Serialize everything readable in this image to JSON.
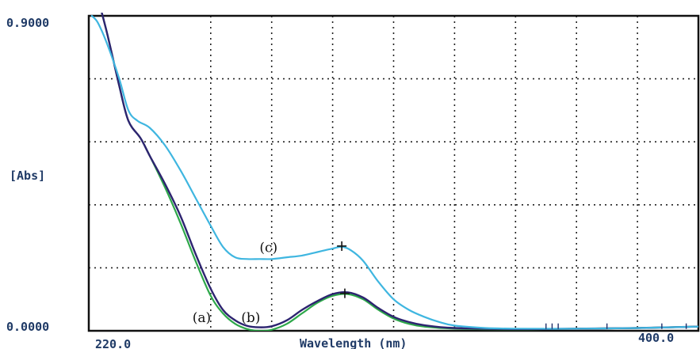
{
  "chart_data": {
    "type": "line",
    "xlabel": "Wavelength (nm)",
    "ylabel": "[Abs]",
    "xlim": [
      200,
      400
    ],
    "ylim": [
      0.0,
      0.9
    ],
    "x_tick_labels": [
      "220.0",
      "400.0"
    ],
    "y_tick_labels": [
      "0.9000",
      "0.0000"
    ],
    "grid": true,
    "series": [
      {
        "name": "(a)",
        "color": "#2ea84a",
        "points": [
          [
            203,
            0.95
          ],
          [
            206,
            0.85
          ],
          [
            210,
            0.7
          ],
          [
            213,
            0.6
          ],
          [
            217,
            0.55
          ],
          [
            220,
            0.5
          ],
          [
            225,
            0.41
          ],
          [
            230,
            0.31
          ],
          [
            235,
            0.2
          ],
          [
            240,
            0.1
          ],
          [
            244,
            0.05
          ],
          [
            248,
            0.02
          ],
          [
            252,
            0.005
          ],
          [
            256,
            0.0
          ],
          [
            260,
            0.003
          ],
          [
            265,
            0.02
          ],
          [
            270,
            0.05
          ],
          [
            275,
            0.08
          ],
          [
            280,
            0.1
          ],
          [
            285,
            0.105
          ],
          [
            290,
            0.09
          ],
          [
            295,
            0.06
          ],
          [
            300,
            0.035
          ],
          [
            305,
            0.02
          ],
          [
            310,
            0.012
          ],
          [
            320,
            0.006
          ],
          [
            340,
            0.004
          ],
          [
            360,
            0.006
          ],
          [
            380,
            0.008
          ],
          [
            400,
            0.012
          ]
        ]
      },
      {
        "name": "(b)",
        "color": "#2d2470",
        "points": [
          [
            203,
            0.95
          ],
          [
            206,
            0.85
          ],
          [
            210,
            0.7
          ],
          [
            213,
            0.6
          ],
          [
            217,
            0.55
          ],
          [
            220,
            0.5
          ],
          [
            225,
            0.42
          ],
          [
            230,
            0.33
          ],
          [
            235,
            0.22
          ],
          [
            240,
            0.12
          ],
          [
            244,
            0.06
          ],
          [
            248,
            0.03
          ],
          [
            252,
            0.014
          ],
          [
            256,
            0.01
          ],
          [
            260,
            0.013
          ],
          [
            265,
            0.03
          ],
          [
            270,
            0.06
          ],
          [
            275,
            0.085
          ],
          [
            280,
            0.105
          ],
          [
            285,
            0.11
          ],
          [
            290,
            0.095
          ],
          [
            295,
            0.065
          ],
          [
            300,
            0.04
          ],
          [
            305,
            0.025
          ],
          [
            310,
            0.016
          ],
          [
            320,
            0.008
          ],
          [
            340,
            0.005
          ],
          [
            360,
            0.006
          ],
          [
            380,
            0.008
          ],
          [
            400,
            0.012
          ]
        ]
      },
      {
        "name": "(c)",
        "color": "#3fb6e0",
        "points": [
          [
            201,
            0.9
          ],
          [
            203,
            0.88
          ],
          [
            206,
            0.82
          ],
          [
            210,
            0.72
          ],
          [
            213,
            0.63
          ],
          [
            216,
            0.6
          ],
          [
            220,
            0.58
          ],
          [
            225,
            0.53
          ],
          [
            230,
            0.46
          ],
          [
            235,
            0.38
          ],
          [
            240,
            0.3
          ],
          [
            244,
            0.24
          ],
          [
            248,
            0.21
          ],
          [
            252,
            0.205
          ],
          [
            256,
            0.205
          ],
          [
            260,
            0.205
          ],
          [
            265,
            0.21
          ],
          [
            270,
            0.215
          ],
          [
            275,
            0.225
          ],
          [
            280,
            0.235
          ],
          [
            283,
            0.24
          ],
          [
            286,
            0.23
          ],
          [
            290,
            0.2
          ],
          [
            295,
            0.14
          ],
          [
            300,
            0.09
          ],
          [
            305,
            0.06
          ],
          [
            310,
            0.04
          ],
          [
            315,
            0.025
          ],
          [
            320,
            0.015
          ],
          [
            330,
            0.008
          ],
          [
            340,
            0.006
          ],
          [
            360,
            0.006
          ],
          [
            380,
            0.008
          ],
          [
            400,
            0.012
          ]
        ]
      }
    ],
    "annotations": [
      {
        "text": "(c)",
        "x": 256,
        "y": 0.225
      },
      {
        "text": "(a)",
        "x": 234,
        "y": 0.025
      },
      {
        "text": "(b)",
        "x": 250,
        "y": 0.025
      }
    ]
  }
}
